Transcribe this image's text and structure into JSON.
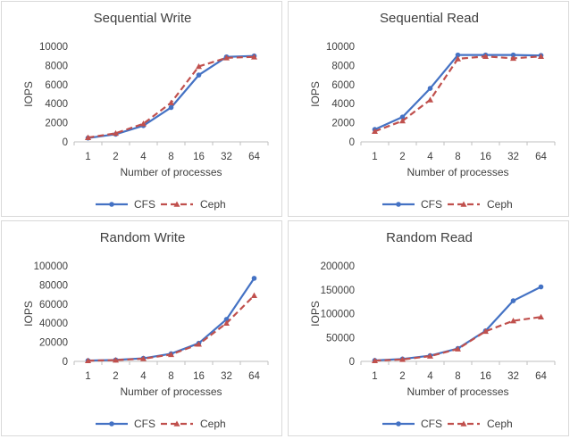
{
  "colors": {
    "cfs": "#4472C4",
    "ceph": "#C0504D"
  },
  "chart_data": [
    {
      "type": "line",
      "title": "Sequential Write",
      "xlabel": "Number of processes",
      "ylabel": "IOPS",
      "categories": [
        "1",
        "2",
        "4",
        "8",
        "16",
        "32",
        "64"
      ],
      "ylim": [
        0,
        10000
      ],
      "yticks": [
        "0",
        "2000",
        "4000",
        "6000",
        "8000",
        "10000"
      ],
      "legend_position": "bottom",
      "series": [
        {
          "name": "CFS",
          "values": [
            400,
            800,
            1700,
            3600,
            7000,
            8900,
            9000
          ]
        },
        {
          "name": "Ceph",
          "values": [
            450,
            900,
            1900,
            4100,
            7900,
            8800,
            8900
          ]
        }
      ]
    },
    {
      "type": "line",
      "title": "Sequential Read",
      "xlabel": "Number of processes",
      "ylabel": "IOPS",
      "categories": [
        "1",
        "2",
        "4",
        "8",
        "16",
        "32",
        "64"
      ],
      "ylim": [
        0,
        10000
      ],
      "yticks": [
        "0",
        "2000",
        "4000",
        "6000",
        "8000",
        "10000"
      ],
      "legend_position": "bottom",
      "series": [
        {
          "name": "CFS",
          "values": [
            1300,
            2600,
            5600,
            9100,
            9100,
            9100,
            9050
          ]
        },
        {
          "name": "Ceph",
          "values": [
            1100,
            2200,
            4400,
            8700,
            8950,
            8750,
            8950
          ]
        }
      ]
    },
    {
      "type": "line",
      "title": "Random Write",
      "xlabel": "Number of processes",
      "ylabel": "IOPS",
      "categories": [
        "1",
        "2",
        "4",
        "8",
        "16",
        "32",
        "64"
      ],
      "ylim": [
        0,
        100000
      ],
      "yticks": [
        "0",
        "20000",
        "40000",
        "60000",
        "80000",
        "100000"
      ],
      "legend_position": "bottom",
      "series": [
        {
          "name": "CFS",
          "values": [
            800,
            1500,
            3200,
            8000,
            19000,
            44000,
            87000
          ]
        },
        {
          "name": "Ceph",
          "values": [
            700,
            1300,
            2800,
            7200,
            18000,
            40000,
            69000
          ]
        }
      ]
    },
    {
      "type": "line",
      "title": "Random Read",
      "xlabel": "Number of processes",
      "ylabel": "IOPS",
      "categories": [
        "1",
        "2",
        "4",
        "8",
        "16",
        "32",
        "64"
      ],
      "ylim": [
        0,
        200000
      ],
      "yticks": [
        "0",
        "50000",
        "100000",
        "150000",
        "200000"
      ],
      "legend_position": "bottom",
      "series": [
        {
          "name": "CFS",
          "values": [
            2000,
            5000,
            12000,
            27000,
            64000,
            127000,
            156000
          ]
        },
        {
          "name": "Ceph",
          "values": [
            1500,
            4000,
            11000,
            26000,
            63000,
            85000,
            93000
          ]
        }
      ]
    }
  ]
}
